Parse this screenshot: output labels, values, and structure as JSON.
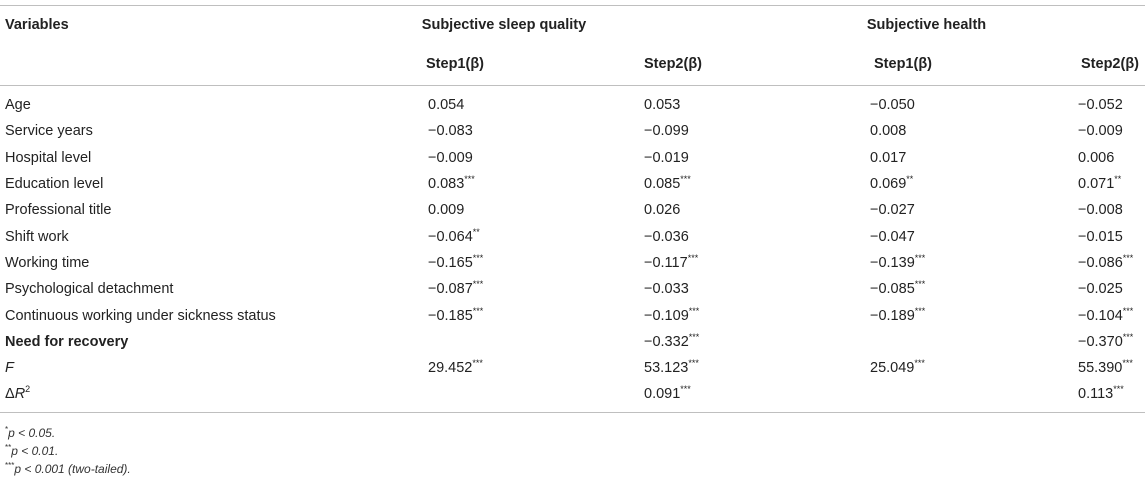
{
  "table": {
    "header": {
      "variables_label": "Variables",
      "group1": "Subjective sleep quality",
      "group2": "Subjective health",
      "sub_cols": [
        "Step1(β)",
        "Step2(β)",
        "Step1(β)",
        "Step2(β)"
      ]
    },
    "rows": [
      {
        "label": "Age",
        "v": [
          "0.054",
          "0.053",
          "−0.050",
          "−0.052"
        ],
        "sig": [
          "",
          "",
          "",
          ""
        ]
      },
      {
        "label": "Service years",
        "v": [
          "−0.083",
          "−0.099",
          "0.008",
          "−0.009"
        ],
        "sig": [
          "",
          "",
          "",
          ""
        ]
      },
      {
        "label": "Hospital level",
        "v": [
          "−0.009",
          "−0.019",
          "0.017",
          "0.006"
        ],
        "sig": [
          "",
          "",
          "",
          ""
        ]
      },
      {
        "label": "Education level",
        "v": [
          "0.083",
          "0.085",
          "0.069",
          "0.071"
        ],
        "sig": [
          "***",
          "***",
          "**",
          "**"
        ]
      },
      {
        "label": "Professional title",
        "v": [
          "0.009",
          "0.026",
          "−0.027",
          "−0.008"
        ],
        "sig": [
          "",
          "",
          "",
          ""
        ]
      },
      {
        "label": "Shift work",
        "v": [
          "−0.064",
          "−0.036",
          "−0.047",
          "−0.015"
        ],
        "sig": [
          "**",
          "",
          "",
          ""
        ]
      },
      {
        "label": "Working time",
        "v": [
          "−0.165",
          "−0.117",
          "−0.139",
          "−0.086"
        ],
        "sig": [
          "***",
          "***",
          "***",
          "***"
        ]
      },
      {
        "label": "Psychological detachment",
        "v": [
          "−0.087",
          "−0.033",
          "−0.085",
          "−0.025"
        ],
        "sig": [
          "***",
          "",
          "***",
          ""
        ]
      },
      {
        "label": "Continuous working under sickness status",
        "v": [
          "−0.185",
          "−0.109",
          "−0.189",
          "−0.104"
        ],
        "sig": [
          "***",
          "***",
          "***",
          "***"
        ]
      },
      {
        "label": "Need for recovery",
        "v": [
          "",
          "−0.332",
          "",
          "−0.370"
        ],
        "sig": [
          "",
          "***",
          "",
          "***"
        ]
      },
      {
        "label": "F",
        "v": [
          "29.452",
          "53.123",
          "25.049",
          "55.390"
        ],
        "sig": [
          "***",
          "***",
          "***",
          "***"
        ]
      },
      {
        "label_prefix": "Δ",
        "label_italic": "R",
        "label_sup": "2",
        "v": [
          "",
          "0.091",
          "",
          "0.113"
        ],
        "sig": [
          "",
          "***",
          "",
          "***"
        ]
      }
    ]
  },
  "notes": [
    {
      "mark": "*",
      "text": "p < 0.05."
    },
    {
      "mark": "**",
      "text": "p < 0.01."
    },
    {
      "mark": "***",
      "text": "p < 0.001 (two-tailed)."
    }
  ]
}
